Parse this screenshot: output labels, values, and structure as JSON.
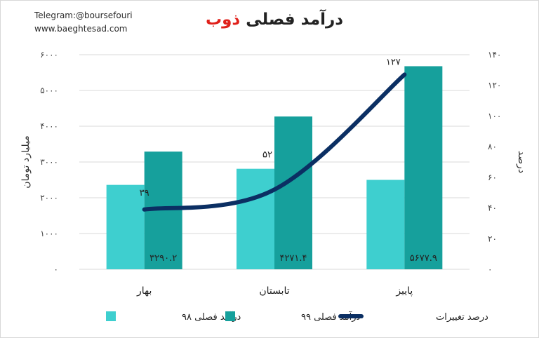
{
  "watermark": {
    "telegram": "Telegram:@boursefouri",
    "website": "www.baeghtesad.com"
  },
  "title": {
    "main": "درآمد فصلی",
    "accent": "ذوب"
  },
  "colors": {
    "q98": "#3ecfcf",
    "q99": "#16a09c",
    "change_line": "#0b2f63",
    "accent": "#e0211b"
  },
  "chart_data": {
    "type": "bar",
    "categories": [
      "بهار",
      "تابستان",
      "پاییز"
    ],
    "ylabel": "میلیارد تومان",
    "ylim": [
      0,
      6000
    ],
    "yticks": [
      "۰",
      "۱۰۰۰",
      "۲۰۰۰",
      "۳۰۰۰",
      "۴۰۰۰",
      "۵۰۰۰",
      "۶۰۰۰"
    ],
    "y2label": "درصد",
    "y2lim": [
      0,
      140
    ],
    "y2ticks": [
      "۰",
      "۲۰",
      "۴۰",
      "۶۰",
      "۸۰",
      "۱۰۰",
      "۱۲۰",
      "۱۴۰"
    ],
    "grid": true,
    "legend": "bottom",
    "series": [
      {
        "name": "درآمد فصلی ۹۸",
        "values": [
          2360,
          2810,
          2500
        ]
      },
      {
        "name": "درآمد فصلی ۹۹",
        "values": [
          3290.2,
          4271.4,
          5677.9
        ],
        "labels": [
          "۳۲۹۰.۲",
          "۴۲۷۱.۴",
          "۵۶۷۷.۹"
        ]
      },
      {
        "name": "درصد تغییرات",
        "type": "line",
        "axis": "right",
        "values": [
          39,
          52,
          127
        ],
        "labels": [
          "۳۹",
          "۵۲",
          "۱۲۷"
        ]
      }
    ]
  }
}
